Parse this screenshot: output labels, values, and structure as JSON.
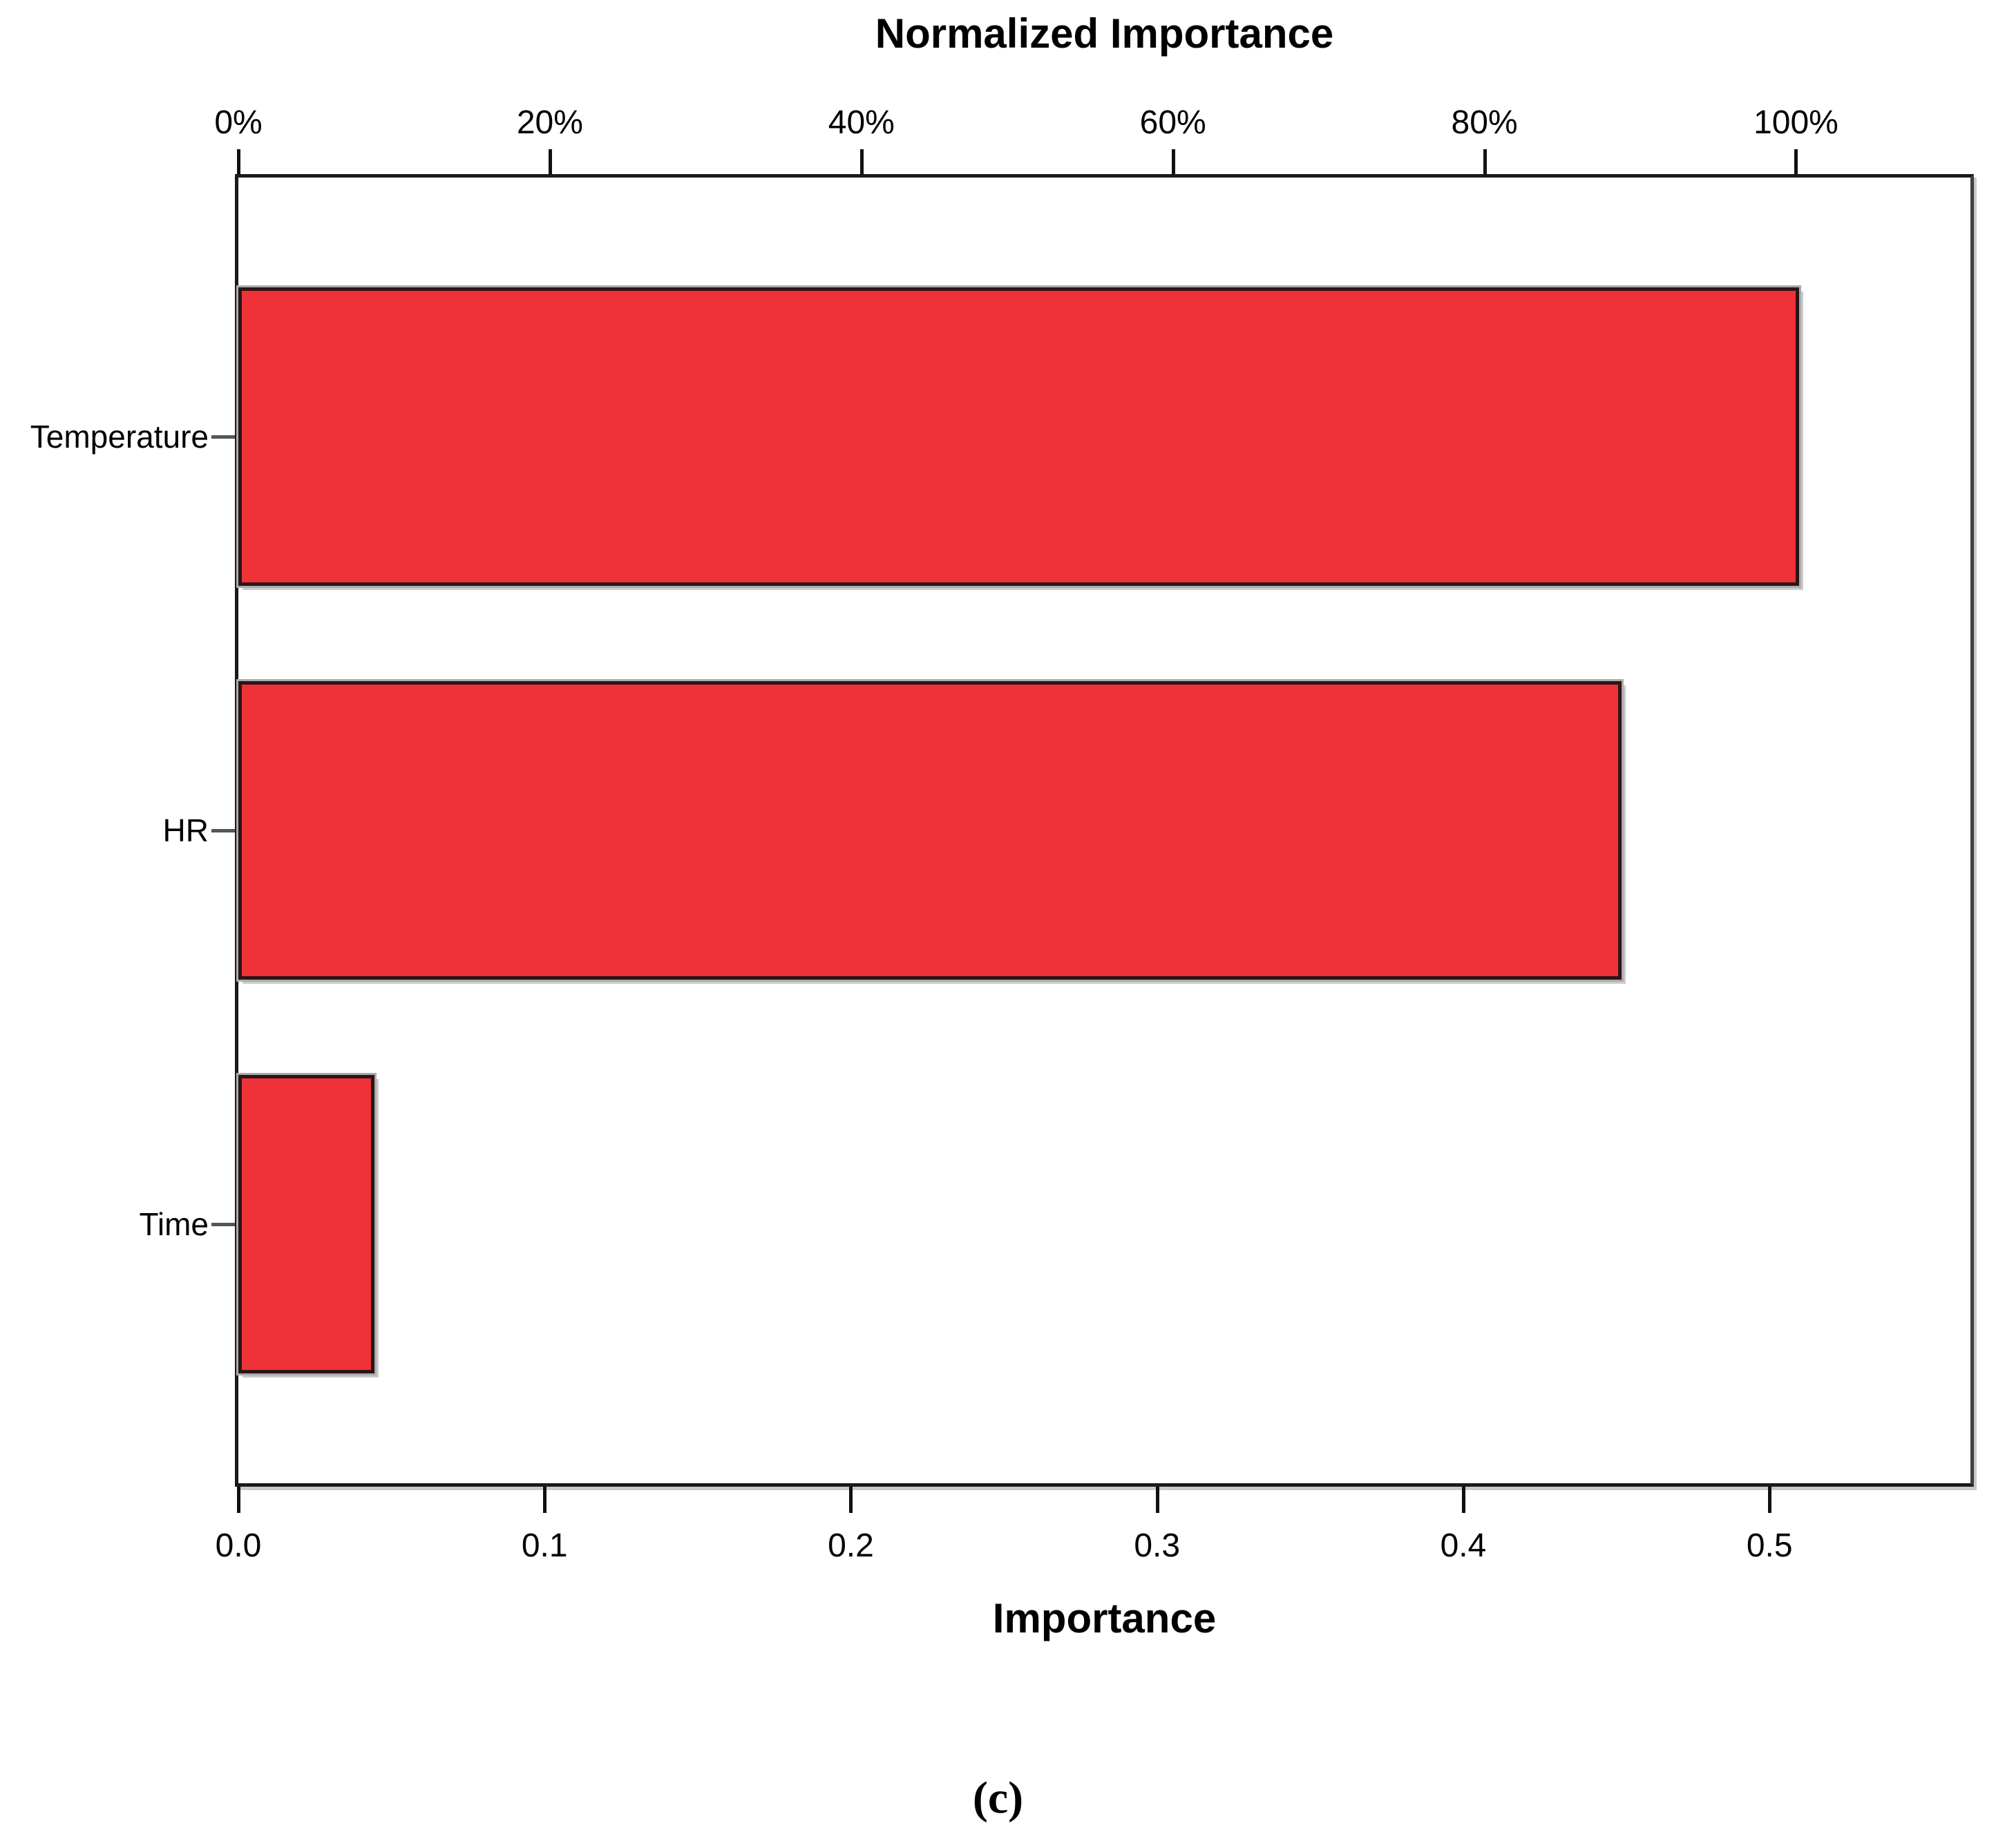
{
  "figure": {
    "caption": "(c)"
  },
  "chart_data": {
    "type": "bar",
    "orientation": "horizontal",
    "title": "Normalized Importance",
    "categories": [
      "Temperature",
      "HR",
      "Time"
    ],
    "series": [
      {
        "name": "Importance",
        "values": [
          0.51,
          0.45,
          0.04
        ]
      },
      {
        "name": "Normalized Importance (%)",
        "values": [
          100,
          88.6,
          8.5
        ]
      }
    ],
    "bar_color": "#EE3237",
    "bar_border_color": "#2B1518",
    "top_axis": {
      "title": "Normalized Importance",
      "tick_labels": [
        "0%",
        "20%",
        "40%",
        "60%",
        "80%",
        "100%"
      ],
      "tick_values": [
        0,
        20,
        40,
        60,
        80,
        100
      ],
      "range": [
        0,
        111.2
      ]
    },
    "bottom_axis": {
      "title": "Importance",
      "tick_labels": [
        "0.0",
        "0.1",
        "0.2",
        "0.3",
        "0.4",
        "0.5"
      ],
      "tick_values": [
        0,
        0.1,
        0.2,
        0.3,
        0.4,
        0.5
      ],
      "range": [
        0,
        0.5656
      ]
    },
    "grid": false,
    "legend": false
  }
}
